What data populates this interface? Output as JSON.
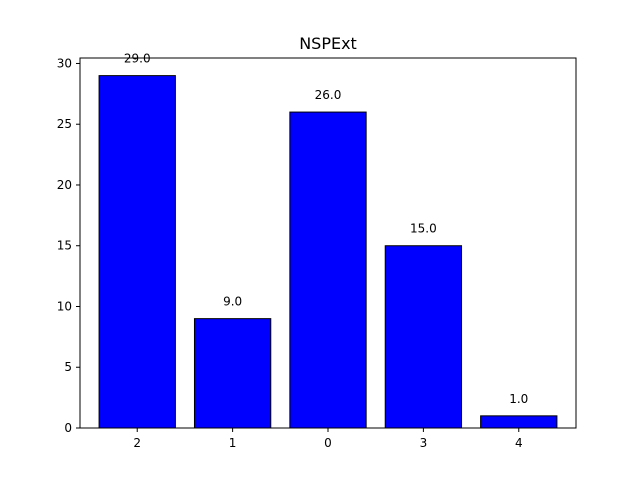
{
  "chart_data": {
    "type": "bar",
    "title": "NSPExt",
    "xlabel": "",
    "ylabel": "",
    "categories": [
      "2",
      "1",
      "0",
      "3",
      "4"
    ],
    "values": [
      29.0,
      9.0,
      26.0,
      15.0,
      1.0
    ],
    "data_labels": [
      "29.0",
      "9.0",
      "26.0",
      "15.0",
      "1.0"
    ],
    "ylim": [
      0,
      30.45
    ],
    "yticks": [
      0,
      5,
      10,
      15,
      20,
      25,
      30
    ],
    "ytick_labels": [
      "0",
      "5",
      "10",
      "15",
      "20",
      "25",
      "30"
    ],
    "grid": false,
    "bar_color": "#0000ff",
    "edge_color": "#000000"
  }
}
